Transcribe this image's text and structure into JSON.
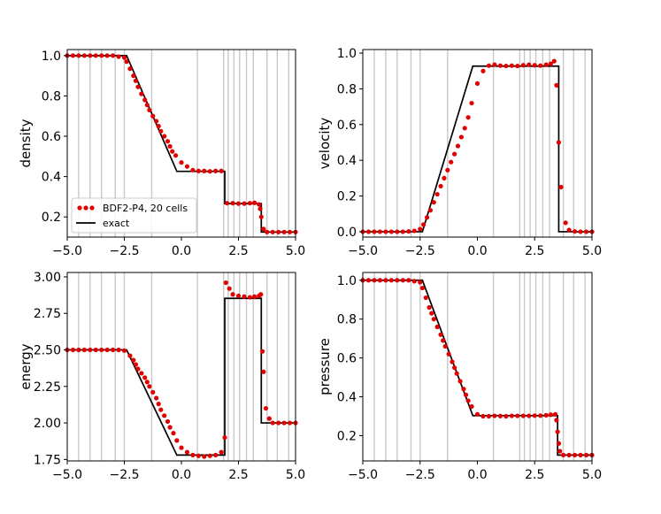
{
  "chart_data": [
    {
      "type": "scatter",
      "ylabel": "density",
      "xlim": [
        -5.0,
        5.0
      ],
      "ylim": [
        0.1,
        1.03
      ],
      "xticks": [
        "−5.0",
        "−2.5",
        "0.0",
        "2.5",
        "5.0"
      ],
      "yticks": [
        "0.2",
        "0.4",
        "0.6",
        "0.8",
        "1.0"
      ],
      "ytick_values": [
        0.2,
        0.4,
        0.6,
        0.8,
        1.0
      ],
      "legend": {
        "position": "lower-left",
        "entries": [
          "BDF2-P4, 20 cells",
          "exact"
        ]
      },
      "exact": {
        "x": [
          -5,
          -2.4,
          -0.2,
          1.9,
          1.9,
          3.5,
          3.5,
          5
        ],
        "y": [
          1.0,
          1.0,
          0.426,
          0.426,
          0.266,
          0.266,
          0.125,
          0.125
        ]
      },
      "series": [
        {
          "name": "BDF2-P4, 20 cells",
          "x": [
            -5,
            -4.75,
            -4.5,
            -4.25,
            -4,
            -3.75,
            -3.5,
            -3.25,
            -3,
            -2.75,
            -2.5,
            -2.4,
            -2.25,
            -2.1,
            -2,
            -1.9,
            -1.75,
            -1.6,
            -1.5,
            -1.4,
            -1.25,
            -1.1,
            -1,
            -0.9,
            -0.75,
            -0.6,
            -0.5,
            -0.4,
            -0.25,
            0,
            0.25,
            0.5,
            0.75,
            1,
            1.25,
            1.5,
            1.75,
            2,
            2.25,
            2.5,
            2.75,
            3,
            3.2,
            3.4,
            3.45,
            3.5,
            3.6,
            3.75,
            4,
            4.25,
            4.5,
            4.75,
            5
          ],
          "y": [
            1.0,
            1.0,
            1.0,
            1.0,
            1.0,
            1.0,
            1.0,
            1.0,
            1.0,
            0.995,
            0.99,
            0.97,
            0.935,
            0.9,
            0.875,
            0.845,
            0.81,
            0.78,
            0.755,
            0.73,
            0.7,
            0.675,
            0.65,
            0.625,
            0.6,
            0.575,
            0.55,
            0.525,
            0.505,
            0.47,
            0.45,
            0.432,
            0.428,
            0.428,
            0.426,
            0.428,
            0.428,
            0.268,
            0.268,
            0.266,
            0.266,
            0.268,
            0.27,
            0.262,
            0.24,
            0.2,
            0.14,
            0.125,
            0.125,
            0.125,
            0.125,
            0.125,
            0.125
          ]
        }
      ]
    },
    {
      "type": "scatter",
      "ylabel": "velocity",
      "xlim": [
        -5.0,
        5.0
      ],
      "ylim": [
        -0.03,
        1.02
      ],
      "xticks": [
        "−5.0",
        "−2.5",
        "0.0",
        "2.5",
        "5.0"
      ],
      "yticks": [
        "0.0",
        "0.2",
        "0.4",
        "0.6",
        "0.8",
        "1.0"
      ],
      "ytick_values": [
        0.0,
        0.2,
        0.4,
        0.6,
        0.8,
        1.0
      ],
      "exact": {
        "x": [
          -5,
          -2.4,
          -0.2,
          3.55,
          3.55,
          5
        ],
        "y": [
          0,
          0,
          0.927,
          0.927,
          0,
          0
        ]
      },
      "series": [
        {
          "name": "BDF2-P4, 20 cells",
          "x": [
            -5,
            -4.75,
            -4.5,
            -4.25,
            -4,
            -3.75,
            -3.5,
            -3.25,
            -3,
            -2.75,
            -2.5,
            -2.35,
            -2.2,
            -2.05,
            -1.9,
            -1.75,
            -1.6,
            -1.45,
            -1.3,
            -1.15,
            -1,
            -0.85,
            -0.7,
            -0.55,
            -0.4,
            -0.25,
            0,
            0.25,
            0.5,
            0.75,
            1,
            1.25,
            1.5,
            1.75,
            2,
            2.25,
            2.5,
            2.75,
            3,
            3.2,
            3.35,
            3.45,
            3.55,
            3.65,
            3.85,
            4,
            4.25,
            4.5,
            4.75,
            5
          ],
          "y": [
            0,
            0,
            0,
            0,
            0,
            0,
            0,
            0,
            0.002,
            0.005,
            0.015,
            0.04,
            0.08,
            0.12,
            0.165,
            0.21,
            0.255,
            0.3,
            0.345,
            0.39,
            0.435,
            0.48,
            0.53,
            0.58,
            0.64,
            0.72,
            0.83,
            0.9,
            0.93,
            0.935,
            0.93,
            0.928,
            0.93,
            0.928,
            0.932,
            0.935,
            0.932,
            0.93,
            0.935,
            0.94,
            0.955,
            0.82,
            0.5,
            0.25,
            0.05,
            0.01,
            0.002,
            0,
            0,
            0
          ]
        }
      ]
    },
    {
      "type": "scatter",
      "ylabel": "energy",
      "xlim": [
        -5.0,
        5.0
      ],
      "ylim": [
        1.74,
        3.03
      ],
      "xticks": [
        "−5.0",
        "−2.5",
        "0.0",
        "2.5",
        "5.0"
      ],
      "yticks": [
        "1.75",
        "2.00",
        "2.25",
        "2.50",
        "2.75",
        "3.00"
      ],
      "ytick_values": [
        1.75,
        2.0,
        2.25,
        2.5,
        2.75,
        3.0
      ],
      "exact": {
        "x": [
          -5,
          -2.4,
          -0.2,
          1.9,
          1.9,
          3.5,
          3.5,
          5
        ],
        "y": [
          2.5,
          2.5,
          1.78,
          1.78,
          2.853,
          2.853,
          2.0,
          2.0
        ]
      },
      "series": [
        {
          "name": "BDF2-P4, 20 cells",
          "x": [
            -5,
            -4.75,
            -4.5,
            -4.25,
            -4,
            -3.75,
            -3.5,
            -3.25,
            -3,
            -2.75,
            -2.5,
            -2.25,
            -2.1,
            -2,
            -1.9,
            -1.75,
            -1.6,
            -1.5,
            -1.4,
            -1.25,
            -1.1,
            -1,
            -0.9,
            -0.75,
            -0.6,
            -0.5,
            -0.35,
            -0.2,
            0,
            0.25,
            0.5,
            0.75,
            1,
            1.25,
            1.5,
            1.75,
            1.9,
            1.95,
            2.1,
            2.25,
            2.5,
            2.75,
            3,
            3.2,
            3.4,
            3.48,
            3.55,
            3.6,
            3.7,
            3.85,
            4,
            4.25,
            4.5,
            4.75,
            5
          ],
          "y": [
            2.5,
            2.5,
            2.5,
            2.5,
            2.5,
            2.5,
            2.5,
            2.5,
            2.5,
            2.5,
            2.495,
            2.46,
            2.43,
            2.4,
            2.37,
            2.34,
            2.31,
            2.28,
            2.25,
            2.21,
            2.17,
            2.13,
            2.09,
            2.05,
            2.01,
            1.97,
            1.93,
            1.88,
            1.83,
            1.8,
            1.78,
            1.775,
            1.77,
            1.775,
            1.78,
            1.8,
            1.9,
            2.96,
            2.92,
            2.88,
            2.87,
            2.865,
            2.86,
            2.865,
            2.87,
            2.88,
            2.49,
            2.35,
            2.1,
            2.03,
            2.0,
            2.0,
            2.0,
            2.0,
            2.0
          ]
        }
      ]
    },
    {
      "type": "scatter",
      "ylabel": "pressure",
      "xlim": [
        -5.0,
        5.0
      ],
      "ylim": [
        0.07,
        1.04
      ],
      "xticks": [
        "−5.0",
        "−2.5",
        "0.0",
        "2.5",
        "5.0"
      ],
      "yticks": [
        "0.2",
        "0.4",
        "0.6",
        "0.8",
        "1.0"
      ],
      "ytick_values": [
        0.2,
        0.4,
        0.6,
        0.8,
        1.0
      ],
      "exact": {
        "x": [
          -5,
          -2.4,
          -0.2,
          3.5,
          3.5,
          5
        ],
        "y": [
          1.0,
          1.0,
          0.303,
          0.303,
          0.1,
          0.1
        ]
      },
      "series": [
        {
          "name": "BDF2-P4, 20 cells",
          "x": [
            -5,
            -4.75,
            -4.5,
            -4.25,
            -4,
            -3.75,
            -3.5,
            -3.25,
            -3,
            -2.75,
            -2.5,
            -2.4,
            -2.25,
            -2.1,
            -2,
            -1.9,
            -1.75,
            -1.6,
            -1.5,
            -1.4,
            -1.25,
            -1.1,
            -1,
            -0.9,
            -0.75,
            -0.6,
            -0.5,
            -0.4,
            -0.25,
            0,
            0.25,
            0.5,
            0.75,
            1,
            1.25,
            1.5,
            1.75,
            2,
            2.25,
            2.5,
            2.75,
            3,
            3.2,
            3.4,
            3.45,
            3.5,
            3.55,
            3.6,
            3.75,
            4,
            4.25,
            4.5,
            4.75,
            5
          ],
          "y": [
            1.0,
            1.0,
            1.0,
            1.0,
            1.0,
            1.0,
            1.0,
            1.0,
            1.0,
            0.995,
            0.99,
            0.96,
            0.91,
            0.86,
            0.83,
            0.8,
            0.76,
            0.72,
            0.69,
            0.66,
            0.62,
            0.58,
            0.55,
            0.52,
            0.48,
            0.44,
            0.41,
            0.38,
            0.35,
            0.31,
            0.3,
            0.3,
            0.302,
            0.301,
            0.3,
            0.302,
            0.302,
            0.302,
            0.302,
            0.303,
            0.303,
            0.305,
            0.308,
            0.31,
            0.28,
            0.22,
            0.16,
            0.12,
            0.1,
            0.1,
            0.1,
            0.1,
            0.1,
            0.1
          ]
        }
      ]
    }
  ],
  "cell_edges": [
    -4.5,
    -4.0,
    -3.5,
    -2.9,
    -2.5,
    -1.3,
    0.7,
    1.85,
    2.05,
    2.3,
    2.55,
    2.85,
    3.15,
    3.75,
    4.2,
    4.7
  ]
}
